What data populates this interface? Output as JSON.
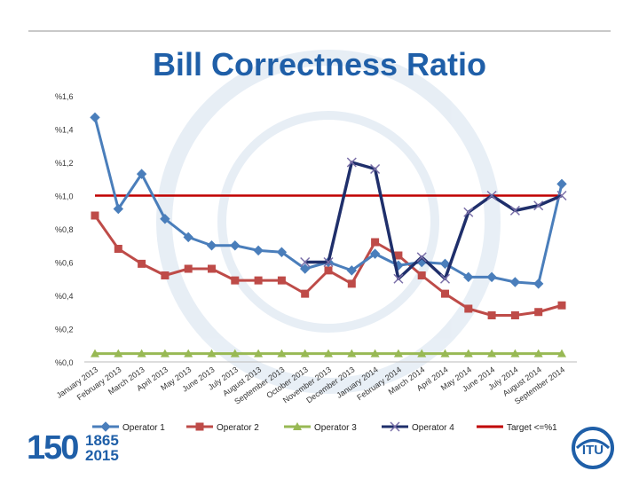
{
  "slide": {
    "title": "Bill Correctness Ratio"
  },
  "logo": {
    "anniversary_number": "150",
    "year_start": "1865",
    "year_end": "2015",
    "org_name": "ITU"
  },
  "colors": {
    "title": "#1f5fa8",
    "operator1": "#4a7ebb",
    "operator2": "#be4b48",
    "operator3": "#98b954",
    "operator4": "#1f2f6b",
    "target": "#c00000"
  },
  "chart_data": {
    "type": "line",
    "title": "",
    "xlabel": "",
    "ylabel": "",
    "ylim": [
      0,
      1.6
    ],
    "y_ticks": [
      "%0,0",
      "%0,2",
      "%0,4",
      "%0,6",
      "%0,8",
      "%1,0",
      "%1,2",
      "%1,4",
      "%1,6"
    ],
    "y_tick_values": [
      0,
      0.2,
      0.4,
      0.6,
      0.8,
      1.0,
      1.2,
      1.4,
      1.6
    ],
    "grid": false,
    "legend": "bottom",
    "categories": [
      "January 2013",
      "February 2013",
      "March 2013",
      "April 2013",
      "May 2013",
      "June 2013",
      "July 2013",
      "August 2013",
      "September 2013",
      "October 2013",
      "November 2013",
      "December 2013",
      "January 2014",
      "February 2014",
      "March 2014",
      "April 2014",
      "May 2014",
      "June 2014",
      "July 2014",
      "August 2014",
      "September 2014"
    ],
    "series": [
      {
        "name": "Operator 1",
        "marker": "diamond",
        "values": [
          1.47,
          0.92,
          1.13,
          0.86,
          0.75,
          0.7,
          0.7,
          0.67,
          0.66,
          0.56,
          0.6,
          0.55,
          0.65,
          0.58,
          0.6,
          0.59,
          0.51,
          0.51,
          0.48,
          0.47,
          1.07
        ]
      },
      {
        "name": "Operator 2",
        "marker": "square",
        "values": [
          0.88,
          0.68,
          0.59,
          0.52,
          0.56,
          0.56,
          0.49,
          0.49,
          0.49,
          0.41,
          0.55,
          0.47,
          0.72,
          0.64,
          0.52,
          0.41,
          0.32,
          0.28,
          0.28,
          0.3,
          0.34
        ]
      },
      {
        "name": "Operator 3",
        "marker": "triangle",
        "values": [
          0.05,
          0.05,
          0.05,
          0.05,
          0.05,
          0.05,
          0.05,
          0.05,
          0.05,
          0.05,
          0.05,
          0.05,
          0.05,
          0.05,
          0.05,
          0.05,
          0.05,
          0.05,
          0.05,
          0.05,
          0.05
        ]
      },
      {
        "name": "Operator 4",
        "marker": "x",
        "values": [
          null,
          null,
          null,
          null,
          null,
          null,
          null,
          null,
          null,
          0.6,
          0.6,
          1.2,
          1.16,
          0.5,
          0.63,
          0.5,
          0.9,
          1.0,
          0.91,
          0.94,
          1.0
        ]
      },
      {
        "name": "Target <=%1",
        "marker": "none",
        "values": [
          1.0,
          1.0,
          1.0,
          1.0,
          1.0,
          1.0,
          1.0,
          1.0,
          1.0,
          1.0,
          1.0,
          1.0,
          1.0,
          1.0,
          1.0,
          1.0,
          1.0,
          1.0,
          1.0,
          1.0,
          1.0
        ]
      }
    ]
  }
}
